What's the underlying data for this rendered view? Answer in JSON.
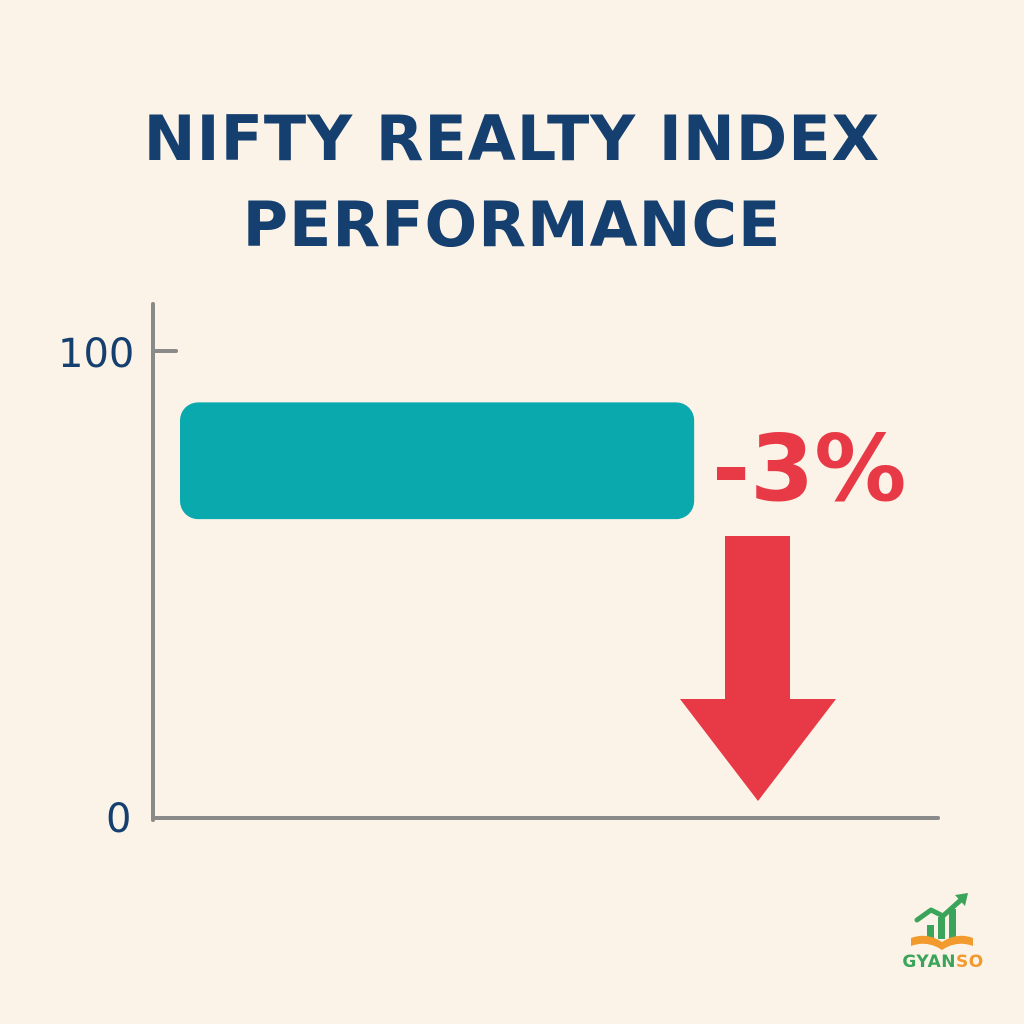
{
  "chart_data": {
    "type": "bar",
    "orientation": "horizontal",
    "title_lines": [
      "NIFTY REALTY INDEX",
      "PERFORMANCE"
    ],
    "y_ticks": [
      "100",
      "0"
    ],
    "ylim": [
      0,
      100
    ],
    "bar_value_range": [
      64,
      89
    ],
    "bar_length_fraction": 0.655,
    "change_label": "-3%",
    "change_direction": "down",
    "grid": false,
    "colors": {
      "bar": "#0aa9ae",
      "change": "#e83a46",
      "axis": "#8a8a8a",
      "title": "#143f6e",
      "background": "#fcf3e8"
    }
  },
  "logo": {
    "text_part1": "GYAN",
    "text_part2": "SO",
    "icon": "growth-chart-book-icon",
    "colors": {
      "green": "#3aa55a",
      "orange": "#f29a2e"
    }
  }
}
